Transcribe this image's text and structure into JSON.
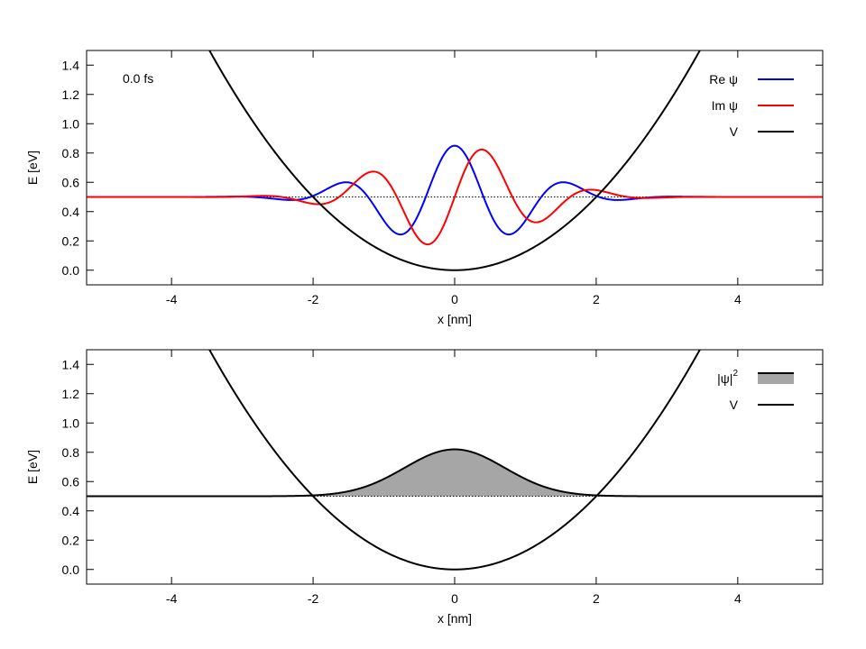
{
  "chart_data": [
    {
      "type": "line",
      "xlabel": "x [nm]",
      "ylabel": "E [eV]",
      "xlim": [
        -5.2,
        5.2
      ],
      "ylim": [
        -0.1,
        1.5
      ],
      "xticks": [
        "-4",
        "-2",
        "0",
        "2",
        "4"
      ],
      "xtick_values": [
        -4,
        -2,
        0,
        2,
        4
      ],
      "yticks": [
        "0.0",
        "0.2",
        "0.4",
        "0.6",
        "0.8",
        "1.0",
        "1.2",
        "1.4"
      ],
      "ytick_values": [
        0,
        0.2,
        0.4,
        0.6,
        0.8,
        1.0,
        1.2,
        1.4
      ],
      "annotation": "0.0 fs",
      "legend_placement": "top-right",
      "grid": false,
      "energy_level": 0.5,
      "potential_curvature": 0.125,
      "wave_amplitude": 0.35,
      "wave_number": 3.85,
      "gaussian_width": 1.0,
      "series": [
        {
          "name": "Re ψ",
          "color": "#0000ff",
          "kind": "re"
        },
        {
          "name": "Im ψ",
          "color": "#ff0000",
          "kind": "im"
        },
        {
          "name": "V",
          "color": "#000000",
          "kind": "potential"
        }
      ],
      "reference_line": {
        "y": 0.5,
        "style": "dotted"
      }
    },
    {
      "type": "area",
      "xlabel": "x [nm]",
      "ylabel": "E [eV]",
      "xlim": [
        -5.2,
        5.2
      ],
      "ylim": [
        -0.1,
        1.5
      ],
      "xticks": [
        "-4",
        "-2",
        "0",
        "2",
        "4"
      ],
      "xtick_values": [
        -4,
        -2,
        0,
        2,
        4
      ],
      "yticks": [
        "0.0",
        "0.2",
        "0.4",
        "0.6",
        "0.8",
        "1.0",
        "1.2",
        "1.4"
      ],
      "ytick_values": [
        0,
        0.2,
        0.4,
        0.6,
        0.8,
        1.0,
        1.2,
        1.4
      ],
      "legend_placement": "top-right",
      "grid": false,
      "energy_level": 0.5,
      "peak_value": 0.82,
      "gaussian_width": 1.0,
      "series": [
        {
          "name": "|ψ|",
          "superscript": "2",
          "color": "#a6a6a6",
          "kind": "density"
        },
        {
          "name": "V",
          "color": "#000000",
          "kind": "potential"
        }
      ]
    }
  ]
}
